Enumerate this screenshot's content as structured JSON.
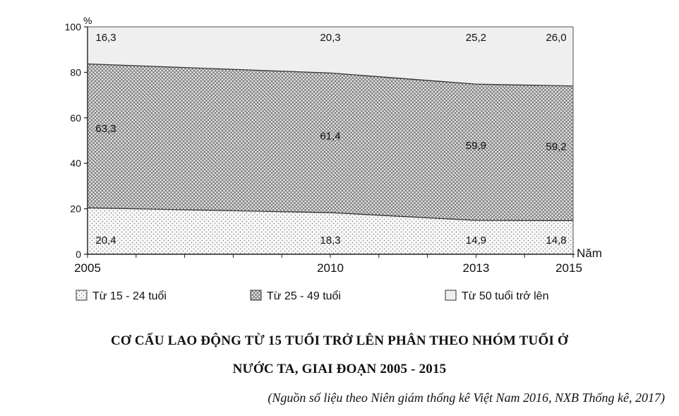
{
  "chart_data": {
    "type": "area",
    "stacked": true,
    "x": [
      2005,
      2010,
      2013,
      2015
    ],
    "x_tick_labels": [
      "2005",
      "2010",
      "2013",
      "2015"
    ],
    "ylim": [
      0,
      100
    ],
    "y_ticks": [
      0,
      20,
      40,
      60,
      80,
      100
    ],
    "y_tick_labels": [
      "0",
      "20",
      "40",
      "60",
      "80",
      "100"
    ],
    "ylabel": "%",
    "xlabel": "Năm",
    "series": [
      {
        "name": "Từ 15 - 24 tuổi",
        "values": [
          20.4,
          18.3,
          14.9,
          14.8
        ],
        "labels": [
          "20,4",
          "18,3",
          "14,9",
          "14,8"
        ],
        "pattern": "light-dots"
      },
      {
        "name": "Từ 25 - 49 tuổi",
        "values": [
          63.3,
          61.4,
          59.9,
          59.2
        ],
        "labels": [
          "63,3",
          "61,4",
          "59,9",
          "59,2"
        ],
        "pattern": "crosshatch"
      },
      {
        "name": "Từ 50 tuổi trở lên",
        "values": [
          16.3,
          20.3,
          25.2,
          26.0
        ],
        "labels": [
          "16,3",
          "20,3",
          "25,2",
          "26,0"
        ],
        "pattern": "plain"
      }
    ],
    "legend_position": "bottom",
    "title": "CƠ CẤU LAO ĐỘNG TỪ 15 TUỔI TRỞ LÊN PHÂN THEO NHÓM TUỔI Ở NƯỚC TA, GIAI ĐOẠN 2005 - 2015"
  },
  "title_line1": "CƠ CẤU LAO ĐỘNG TỪ 15 TUỔI TRỞ LÊN PHÂN THEO NHÓM TUỔI Ở",
  "title_line2": "NƯỚC TA, GIAI ĐOẠN 2005 - 2015",
  "source": "(Nguồn số liệu theo Niên giám thống kê Việt Nam 2016, NXB Thống kê, 2017)",
  "colors": {
    "fill_top": "#efefef",
    "stroke": "#333333",
    "text": "#111111"
  }
}
